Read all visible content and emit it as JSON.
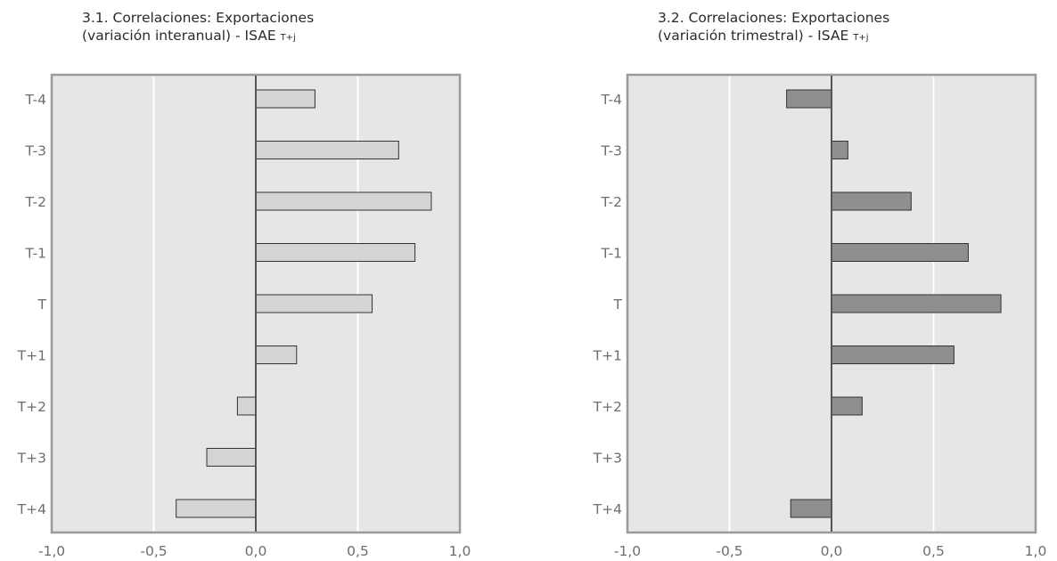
{
  "chart_data": [
    {
      "type": "bar",
      "orientation": "horizontal",
      "title_line1": "3.1. Correlaciones: Exportaciones",
      "title_line2": "(variación interanual) - ISAE",
      "title_subscript": "T+j",
      "categories": [
        "T-4",
        "T-3",
        "T-2",
        "T-1",
        "T",
        "T+1",
        "T+2",
        "T+3",
        "T+4"
      ],
      "values": [
        0.29,
        0.7,
        0.86,
        0.78,
        0.57,
        0.2,
        -0.09,
        -0.24,
        -0.39
      ],
      "xlim": [
        -1.0,
        1.0
      ],
      "xticks": [
        "-1,0",
        "-0,5",
        "0,0",
        "0,5",
        "1,0"
      ],
      "grid": true,
      "bar_color": "#d4d4d4"
    },
    {
      "type": "bar",
      "orientation": "horizontal",
      "title_line1": "3.2. Correlaciones: Exportaciones",
      "title_line2": "(variación trimestral) - ISAE",
      "title_subscript": "T+j",
      "categories": [
        "T-4",
        "T-3",
        "T-2",
        "T-1",
        "T",
        "T+1",
        "T+2",
        "T+3",
        "T+4"
      ],
      "values": [
        -0.22,
        0.08,
        0.39,
        0.67,
        0.83,
        0.6,
        0.15,
        0.0,
        -0.2
      ],
      "xlim": [
        -1.0,
        1.0
      ],
      "xticks": [
        "-1,0",
        "-0,5",
        "0,0",
        "0,5",
        "1,0"
      ],
      "grid": true,
      "bar_color": "#8f8f8f"
    }
  ],
  "colors": {
    "plot_background": "#e6e6e8",
    "frame": "#9a9a9a",
    "gridline": "#ffffff",
    "zero_line": "#555555",
    "bar_outline": "#333333"
  }
}
